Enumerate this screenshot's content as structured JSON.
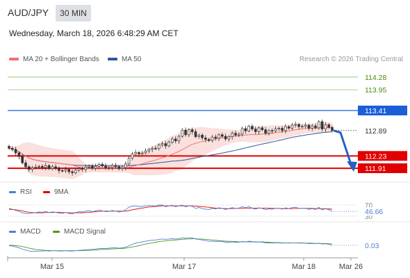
{
  "header": {
    "pair": "AUD/JPY",
    "timeframe": "30 MIN",
    "datetime": "Wednesday, March 18, 2026 6:48:29 AM CET"
  },
  "legend": {
    "ma20": "MA 20 + Bollinger Bands",
    "ma50": "MA 50",
    "credit": "Research © 2026 Trading Central"
  },
  "colors": {
    "ma20": "#f07070",
    "ma50": "#2c5a9a",
    "bands": "#f9d9d6",
    "level_red": "#e00000",
    "level_blue": "#1a5ed8",
    "level_green": "#8ac060",
    "price": "#333333"
  },
  "chart_data": [
    {
      "type": "candlestick",
      "x_ticks": [
        "Mar 15",
        "Mar 17",
        "Mar 18",
        "Mar 26"
      ],
      "levels": [
        {
          "value": 114.28,
          "label": "114.28",
          "color": "#8ac060",
          "style": "line"
        },
        {
          "value": 113.95,
          "label": "113.95",
          "color": "#8ac060",
          "style": "line"
        },
        {
          "value": 113.41,
          "label": "113.41",
          "color": "#1a5ed8",
          "style": "box"
        },
        {
          "value": 112.89,
          "label": "112.89",
          "color": "#333333",
          "style": "current"
        },
        {
          "value": 112.23,
          "label": "112.23",
          "color": "#e00000",
          "style": "box"
        },
        {
          "value": 111.91,
          "label": "111.91",
          "color": "#e00000",
          "style": "box"
        }
      ],
      "ylim": [
        111.55,
        114.62
      ],
      "current_price": 112.89,
      "projection": {
        "from": 112.89,
        "to": 111.91,
        "direction": "down"
      },
      "closes": [
        112.43,
        112.4,
        112.31,
        112.22,
        112.05,
        111.95,
        111.88,
        111.92,
        111.94,
        111.96,
        111.93,
        111.98,
        111.9,
        111.95,
        111.92,
        111.85,
        111.84,
        111.88,
        111.82,
        111.79,
        111.86,
        111.9,
        111.88,
        111.94,
        111.97,
        111.91,
        111.96,
        112.01,
        111.97,
        111.92,
        111.93,
        111.98,
        111.95,
        111.9,
        111.93,
        112.02,
        112.17,
        112.28,
        112.32,
        112.28,
        112.31,
        112.36,
        112.4,
        112.43,
        112.42,
        112.52,
        112.55,
        112.49,
        112.59,
        112.67,
        112.62,
        112.74,
        112.9,
        112.78,
        112.91,
        112.86,
        112.73,
        112.77,
        112.7,
        112.66,
        112.63,
        112.72,
        112.69,
        112.78,
        112.74,
        112.67,
        112.73,
        112.82,
        112.77,
        112.8,
        112.94,
        112.88,
        113.0,
        112.93,
        112.86,
        112.96,
        112.91,
        112.82,
        112.89,
        112.88,
        112.93,
        112.95,
        112.89,
        112.99,
        112.95,
        113.03,
        113.05,
        112.99,
        113.0,
        113.03,
        112.95,
        113.01,
        112.96,
        113.12,
        112.93,
        113.04,
        112.97,
        112.89
      ]
    },
    {
      "type": "line",
      "title": "RSI",
      "series": [
        {
          "name": "RSI",
          "color": "#4e7fd8"
        },
        {
          "name": "9MA",
          "color": "#e00000"
        }
      ],
      "levels": [
        70,
        30
      ],
      "current_label": "46.66",
      "rsi": [
        58,
        55,
        50,
        47,
        42,
        40,
        39,
        41,
        43,
        45,
        44,
        47,
        43,
        45,
        44,
        41,
        40,
        43,
        40,
        38,
        43,
        46,
        45,
        48,
        50,
        46,
        49,
        52,
        49,
        46,
        47,
        50,
        48,
        45,
        47,
        53,
        62,
        66,
        67,
        64,
        65,
        67,
        68,
        68,
        66,
        70,
        70,
        64,
        67,
        69,
        64,
        67,
        70,
        63,
        68,
        65,
        58,
        61,
        57,
        55,
        54,
        58,
        56,
        60,
        58,
        54,
        57,
        61,
        57,
        59,
        64,
        60,
        64,
        59,
        55,
        60,
        58,
        53,
        56,
        55,
        58,
        59,
        55,
        60,
        57,
        61,
        62,
        58,
        58,
        59,
        54,
        57,
        54,
        62,
        52,
        57,
        53,
        47
      ],
      "ma9": [
        55,
        54,
        53,
        51,
        49,
        46,
        44,
        43,
        42,
        42,
        42,
        43,
        43,
        43,
        44,
        44,
        43,
        43,
        42,
        42,
        42,
        42,
        42,
        43,
        44,
        45,
        46,
        47,
        48,
        48,
        48,
        48,
        48,
        48,
        48,
        48,
        50,
        53,
        55,
        57,
        59,
        61,
        63,
        64,
        65,
        66,
        67,
        67,
        67,
        67,
        67,
        67,
        67,
        67,
        67,
        67,
        66,
        65,
        64,
        63,
        62,
        60,
        59,
        58,
        58,
        57,
        57,
        57,
        58,
        58,
        58,
        59,
        59,
        59,
        59,
        59,
        59,
        59,
        59,
        58,
        58,
        58,
        57,
        57,
        57,
        57,
        58,
        58,
        58,
        58,
        58,
        58,
        57,
        57,
        57,
        57,
        56,
        55
      ]
    },
    {
      "type": "line",
      "title": "MACD",
      "series": [
        {
          "name": "MACD",
          "color": "#4e7fd8"
        },
        {
          "name": "MACD Signal",
          "color": "#4e9a1c"
        }
      ],
      "current_label": "0.03",
      "macd": [
        0.02,
        0.01,
        -0.02,
        -0.05,
        -0.09,
        -0.12,
        -0.15,
        -0.16,
        -0.16,
        -0.15,
        -0.15,
        -0.14,
        -0.15,
        -0.14,
        -0.14,
        -0.15,
        -0.15,
        -0.14,
        -0.15,
        -0.15,
        -0.14,
        -0.13,
        -0.12,
        -0.11,
        -0.1,
        -0.1,
        -0.09,
        -0.07,
        -0.07,
        -0.07,
        -0.06,
        -0.05,
        -0.05,
        -0.06,
        -0.05,
        -0.03,
        0.02,
        0.06,
        0.1,
        0.12,
        0.14,
        0.16,
        0.18,
        0.19,
        0.2,
        0.22,
        0.23,
        0.22,
        0.23,
        0.24,
        0.23,
        0.24,
        0.27,
        0.25,
        0.27,
        0.26,
        0.23,
        0.22,
        0.2,
        0.18,
        0.16,
        0.16,
        0.15,
        0.16,
        0.15,
        0.13,
        0.13,
        0.14,
        0.13,
        0.13,
        0.15,
        0.14,
        0.16,
        0.15,
        0.13,
        0.14,
        0.13,
        0.11,
        0.11,
        0.1,
        0.11,
        0.11,
        0.1,
        0.11,
        0.1,
        0.11,
        0.11,
        0.1,
        0.1,
        0.1,
        0.08,
        0.09,
        0.08,
        0.1,
        0.07,
        0.08,
        0.06,
        0.03
      ],
      "signal": [
        0.03,
        0.03,
        0.02,
        0.01,
        -0.01,
        -0.03,
        -0.06,
        -0.08,
        -0.1,
        -0.11,
        -0.12,
        -0.13,
        -0.13,
        -0.14,
        -0.14,
        -0.14,
        -0.14,
        -0.14,
        -0.14,
        -0.14,
        -0.14,
        -0.14,
        -0.14,
        -0.13,
        -0.13,
        -0.12,
        -0.12,
        -0.11,
        -0.1,
        -0.1,
        -0.09,
        -0.08,
        -0.08,
        -0.07,
        -0.07,
        -0.06,
        -0.04,
        -0.02,
        0.0,
        0.02,
        0.05,
        0.07,
        0.09,
        0.11,
        0.13,
        0.15,
        0.16,
        0.17,
        0.18,
        0.19,
        0.2,
        0.21,
        0.22,
        0.23,
        0.23,
        0.24,
        0.24,
        0.23,
        0.23,
        0.22,
        0.21,
        0.2,
        0.19,
        0.18,
        0.17,
        0.16,
        0.16,
        0.15,
        0.15,
        0.14,
        0.14,
        0.14,
        0.14,
        0.14,
        0.14,
        0.14,
        0.14,
        0.13,
        0.13,
        0.12,
        0.12,
        0.12,
        0.11,
        0.11,
        0.11,
        0.11,
        0.11,
        0.11,
        0.11,
        0.1,
        0.1,
        0.1,
        0.09,
        0.09,
        0.09,
        0.09,
        0.08,
        0.07
      ]
    }
  ],
  "rsi_legend": {
    "rsi": "RSI",
    "ma9": "9MA"
  },
  "macd_legend": {
    "macd": "MACD",
    "signal": "MACD Signal"
  }
}
